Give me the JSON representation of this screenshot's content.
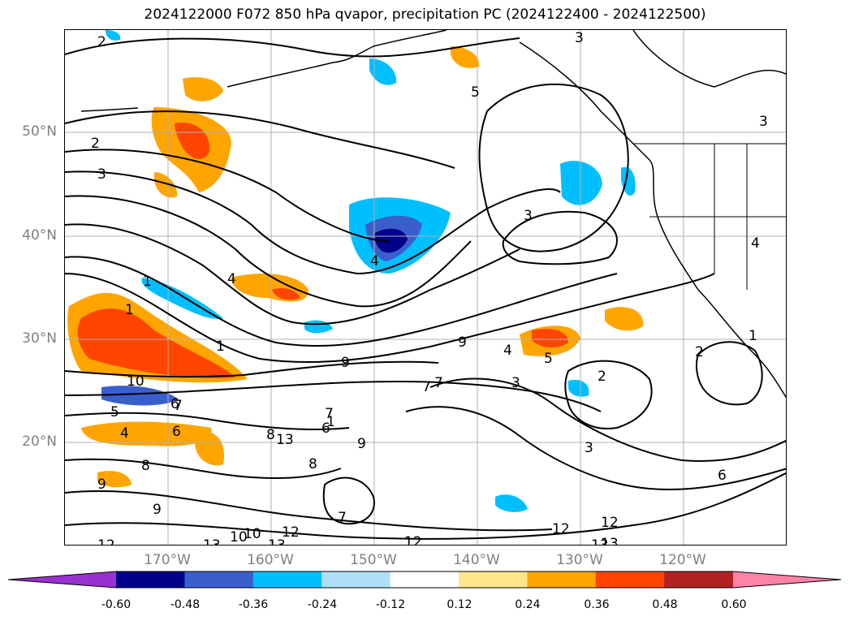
{
  "title": "2024122000 F072 850 hPa qvapor, precipitation PC (2024122400 - 2024122500)",
  "lat_labels": [
    "50°N",
    "40°N",
    "30°N",
    "20°N"
  ],
  "lon_labels": [
    "170°W",
    "160°W",
    "150°W",
    "140°W",
    "130°W",
    "120°W"
  ],
  "colorbar": {
    "ticks": [
      "-0.60",
      "-0.48",
      "-0.36",
      "-0.24",
      "-0.12",
      "0.12",
      "0.24",
      "0.36",
      "0.48",
      "0.60"
    ],
    "colors": [
      "#9b30d0",
      "#00008b",
      "#3a5fcd",
      "#00bfff",
      "#b0e0f8",
      "#ffffff",
      "#ffe68c",
      "#ffa500",
      "#ff4500",
      "#b22222",
      "#ff82a8"
    ]
  },
  "contour_labels": [
    "2",
    "3",
    "5",
    "3",
    "2",
    "3",
    "4",
    "3",
    "1",
    "1",
    "1",
    "10",
    "7",
    "5",
    "4",
    "6",
    "9",
    "7",
    "1",
    "8",
    "8",
    "13",
    "12",
    "12",
    "13",
    "10",
    "9",
    "6",
    "7",
    "9",
    "9",
    "8",
    "3",
    "3",
    "2",
    "2",
    "4",
    "4",
    "1",
    "7",
    "5",
    "6",
    "13",
    "12",
    "13",
    "10",
    "9",
    "7",
    "6",
    "4",
    "12",
    "12",
    "13"
  ],
  "colors": {
    "border": "#000000",
    "grid": "#b0b0b0",
    "axis_label": "#808080"
  }
}
